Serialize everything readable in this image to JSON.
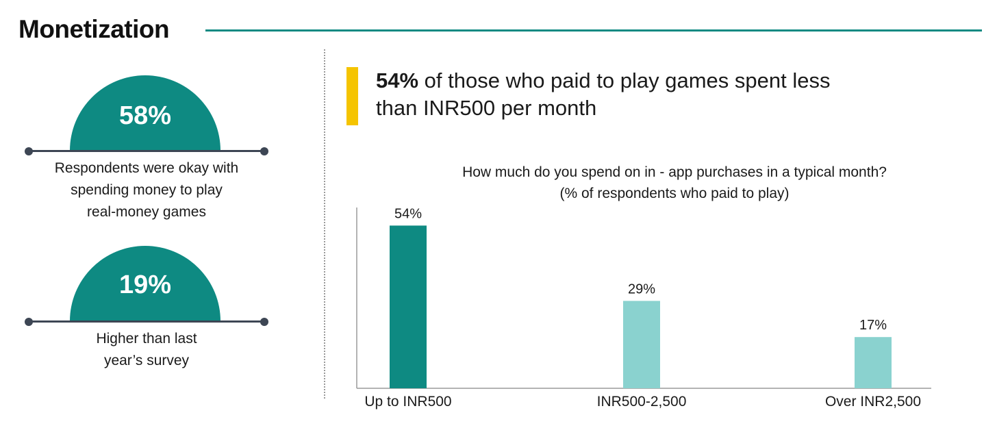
{
  "page": {
    "title": "Monetization",
    "accent_color": "#0e8a82",
    "light_color": "#8ad2cf",
    "highlight_color": "#f5c400"
  },
  "left": {
    "stats": [
      {
        "value": "58%",
        "caption_lines": [
          "Respondents were okay with",
          "spending money to play",
          "real-money games"
        ]
      },
      {
        "value": "19%",
        "caption_lines": [
          "Higher than last",
          "year’s survey"
        ]
      }
    ]
  },
  "headline": {
    "bold": "54%",
    "rest": " of those who paid to play games spent less than INR500 per month"
  },
  "chart_data": {
    "type": "bar",
    "title": "How much do you spend on in - app purchases in a typical month?",
    "subtitle": "(% of respondents who paid to play)",
    "categories": [
      "Up to INR500",
      "INR500-2,500",
      "Over INR2,500"
    ],
    "values": [
      54,
      29,
      17
    ],
    "value_labels": [
      "54%",
      "29%",
      "17%"
    ],
    "colors": [
      "#0e8a82",
      "#8ad2cf",
      "#8ad2cf"
    ],
    "ylim": [
      0,
      60
    ],
    "grid": false,
    "legend": "none"
  }
}
